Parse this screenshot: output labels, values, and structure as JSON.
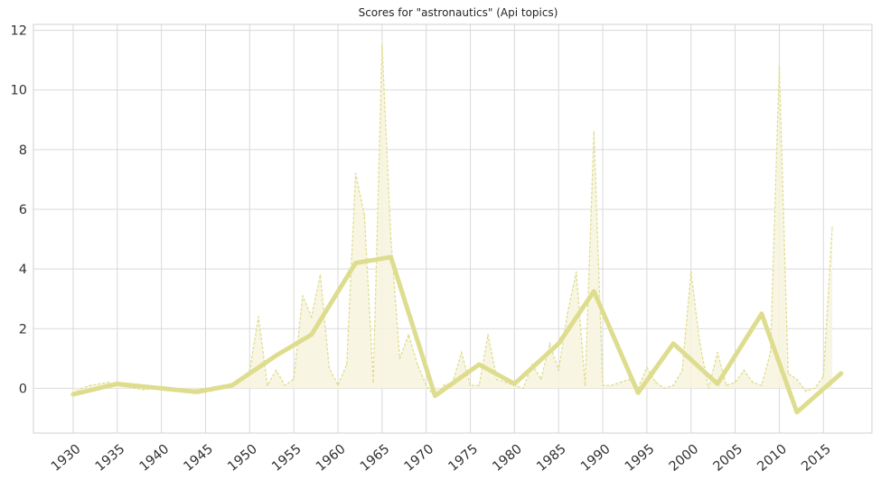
{
  "chart_data": {
    "type": "line",
    "title": "Scores for \"astronautics\" (Api topics)",
    "xlabel": "",
    "ylabel": "",
    "xlim": [
      1925.5,
      2020.5
    ],
    "ylim": [
      -1.5,
      12.2
    ],
    "x_ticks": [
      "1930",
      "1935",
      "1940",
      "1945",
      "1950",
      "1955",
      "1960",
      "1965",
      "1970",
      "1975",
      "1980",
      "1985",
      "1990",
      "1995",
      "2000",
      "2005",
      "2010",
      "2015"
    ],
    "y_ticks": [
      "0",
      "2",
      "4",
      "6",
      "8",
      "10",
      "12"
    ],
    "grid": true,
    "colors": {
      "line": "#dedd8f",
      "fill": "#f7f5dd",
      "grid": "#d9d9d9",
      "frame": "#d2d2d2"
    },
    "series": [
      {
        "style": "dashed-raw",
        "x": [
          1930,
          1931,
          1932,
          1933,
          1934,
          1935,
          1936,
          1937,
          1938,
          1939,
          1940,
          1941,
          1942,
          1943,
          1944,
          1945,
          1946,
          1947,
          1948,
          1949,
          1950,
          1951,
          1952,
          1953,
          1954,
          1955,
          1956,
          1957,
          1958,
          1959,
          1960,
          1961,
          1962,
          1963,
          1964,
          1965,
          1966,
          1967,
          1968,
          1969,
          1970,
          1971,
          1972,
          1973,
          1974,
          1975,
          1976,
          1977,
          1978,
          1979,
          1980,
          1981,
          1982,
          1983,
          1984,
          1985,
          1986,
          1987,
          1988,
          1989,
          1990,
          1991,
          1992,
          1993,
          1994,
          1995,
          1996,
          1997,
          1998,
          1999,
          2000,
          2001,
          2002,
          2003,
          2004,
          2005,
          2006,
          2007,
          2008,
          2009,
          2010,
          2011,
          2012,
          2013,
          2014,
          2015,
          2016
        ],
        "values": [
          -0.2,
          0.0,
          0.1,
          0.15,
          0.2,
          0.1,
          0.05,
          0.0,
          -0.05,
          0.0,
          0.0,
          -0.05,
          -0.1,
          -0.1,
          -0.05,
          0.0,
          0.05,
          0.1,
          0.1,
          0.3,
          0.6,
          2.4,
          0.1,
          0.6,
          0.1,
          0.3,
          3.1,
          2.4,
          3.8,
          0.7,
          0.1,
          0.8,
          7.2,
          5.8,
          0.2,
          11.5,
          5.0,
          1.0,
          1.8,
          0.8,
          0.1,
          -0.3,
          0.1,
          0.2,
          1.2,
          0.1,
          0.1,
          1.8,
          0.3,
          0.2,
          0.1,
          0.0,
          0.8,
          0.3,
          1.5,
          0.6,
          2.5,
          3.9,
          0.1,
          8.6,
          0.1,
          0.1,
          0.2,
          0.3,
          0.0,
          0.7,
          0.2,
          0.0,
          0.1,
          0.6,
          3.9,
          1.5,
          0.0,
          1.2,
          0.1,
          0.2,
          0.6,
          0.2,
          0.1,
          1.2,
          10.8,
          0.5,
          0.3,
          -0.1,
          0.0,
          0.4,
          5.4
        ]
      },
      {
        "style": "solid-smoothed",
        "x": [
          1930,
          1935,
          1940,
          1944,
          1948,
          1953,
          1957,
          1962,
          1966,
          1971,
          1976,
          1980,
          1985,
          1989,
          1994,
          1998,
          2003,
          2008,
          2012,
          2017
        ],
        "values": [
          -0.2,
          0.15,
          0.0,
          -0.12,
          0.1,
          1.1,
          1.8,
          4.2,
          4.4,
          -0.25,
          0.8,
          0.15,
          1.5,
          3.25,
          -0.15,
          1.5,
          0.15,
          2.5,
          -0.8,
          0.5
        ]
      }
    ]
  }
}
